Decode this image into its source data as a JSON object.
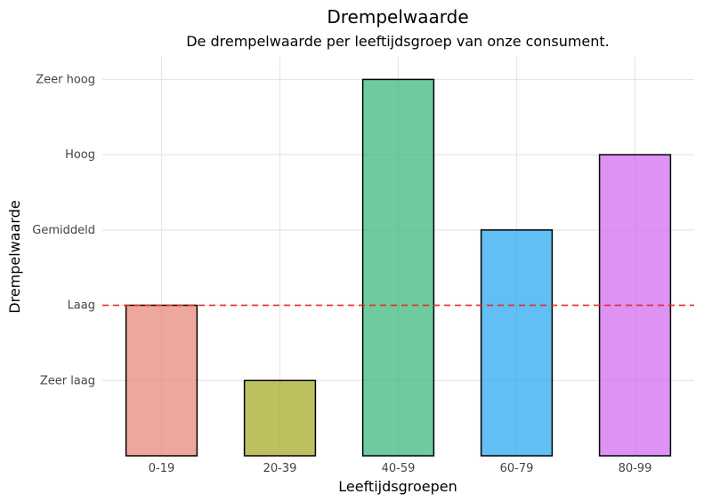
{
  "chart_data": {
    "type": "bar",
    "title": "Drempelwaarde",
    "subtitle": "De drempelwaarde per leeftijdsgroep van onze consument.",
    "xlabel": "Leeftijdsgroepen",
    "ylabel": "Drempelwaarde",
    "categories": [
      "0-19",
      "20-39",
      "40-59",
      "60-79",
      "80-99"
    ],
    "values": [
      2,
      1,
      5,
      3,
      4
    ],
    "y_tick_labels": [
      "Zeer laag",
      "Laag",
      "Gemiddeld",
      "Hoog",
      "Zeer hoog"
    ],
    "y_tick_values": [
      1,
      2,
      3,
      4,
      5
    ],
    "ylim": [
      0,
      5.3
    ],
    "reference_line": {
      "value": 2,
      "style": "dashed",
      "color": "#e8291c"
    },
    "colors": [
      "#e8897b",
      "#a8ab2a",
      "#3dba7e",
      "#2eaaf0",
      "#d26ef0"
    ],
    "grid": true,
    "legend": "none"
  }
}
